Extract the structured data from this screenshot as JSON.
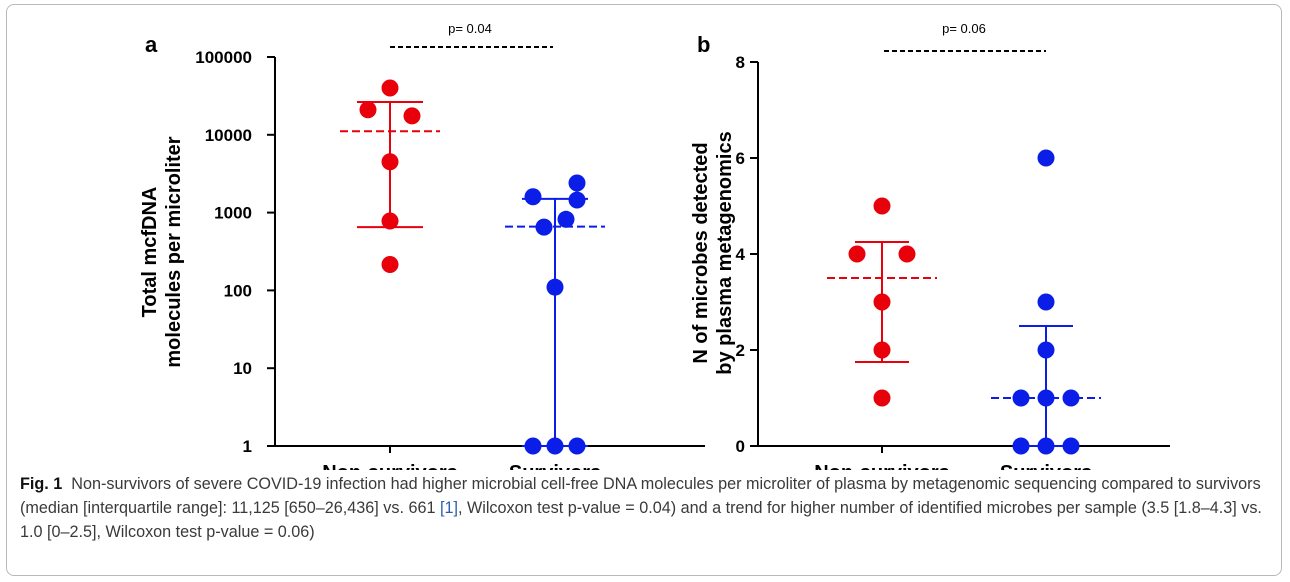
{
  "chart_data": [
    {
      "type": "scatter",
      "panel_label": "a",
      "ylabel_line1": "Total mcfDNA",
      "ylabel_line2": "molecules per microliter",
      "yscale": "log",
      "ylim": [
        1,
        100000
      ],
      "yticks": [
        1,
        10,
        100,
        1000,
        10000,
        100000
      ],
      "ytick_labels": [
        "1",
        "10",
        "100",
        "1000",
        "10000",
        "100000"
      ],
      "categories": [
        "Non-survivors",
        "Survivors"
      ],
      "series": [
        {
          "color": "#e8000b",
          "points": [
            40000,
            21000,
            17500,
            4500,
            780,
            215
          ],
          "jitter": [
            0,
            -1,
            1,
            0,
            0,
            0
          ],
          "median": 11125,
          "iqr": [
            650,
            26436
          ]
        },
        {
          "color": "#0a1ee8",
          "points": [
            2400,
            1600,
            1450,
            820,
            650,
            110,
            1,
            1,
            1
          ],
          "jitter": [
            1,
            -1,
            1,
            0.5,
            -0.5,
            0,
            -1,
            0,
            1
          ],
          "median": 661,
          "iqr": [
            1,
            1500
          ]
        }
      ],
      "annotation": "p= 0.04"
    },
    {
      "type": "scatter",
      "panel_label": "b",
      "ylabel_line1": "N of microbes detected",
      "ylabel_line2": "by plasma metagenomics",
      "yscale": "linear",
      "ylim": [
        0,
        8
      ],
      "yticks": [
        0,
        2,
        4,
        6,
        8
      ],
      "ytick_labels": [
        "0",
        "2",
        "4",
        "6",
        "8"
      ],
      "categories": [
        "Non-survivors",
        "Survivors"
      ],
      "series": [
        {
          "color": "#e8000b",
          "points": [
            5,
            4,
            4,
            3,
            2,
            1
          ],
          "jitter": [
            0,
            -1,
            1,
            0,
            0,
            0
          ],
          "median": 3.5,
          "iqr": [
            1.75,
            4.25
          ]
        },
        {
          "color": "#0a1ee8",
          "points": [
            6,
            3,
            2,
            1,
            1,
            1,
            0,
            0,
            0
          ],
          "jitter": [
            0,
            0,
            0,
            -1,
            0,
            1,
            -1,
            0,
            1
          ],
          "median": 1,
          "iqr": [
            0,
            2.5
          ]
        }
      ],
      "annotation": "p= 0.06"
    }
  ],
  "caption": {
    "label": "Fig. 1",
    "text_before_ref": "Non-survivors of severe COVID-19 infection had higher microbial cell-free DNA molecules per microliter of plasma by metagenomic sequencing compared to survivors (median [interquartile range]: 11,125 [650–26,436] vs. 661 ",
    "ref": "[1]",
    "text_after_ref": ", Wilcoxon test p-value = 0.04) and a trend for higher number of identified microbes per sample (3.5 [1.8–4.3] vs. 1.0 [0–2.5], Wilcoxon test p-value = 0.06)"
  }
}
